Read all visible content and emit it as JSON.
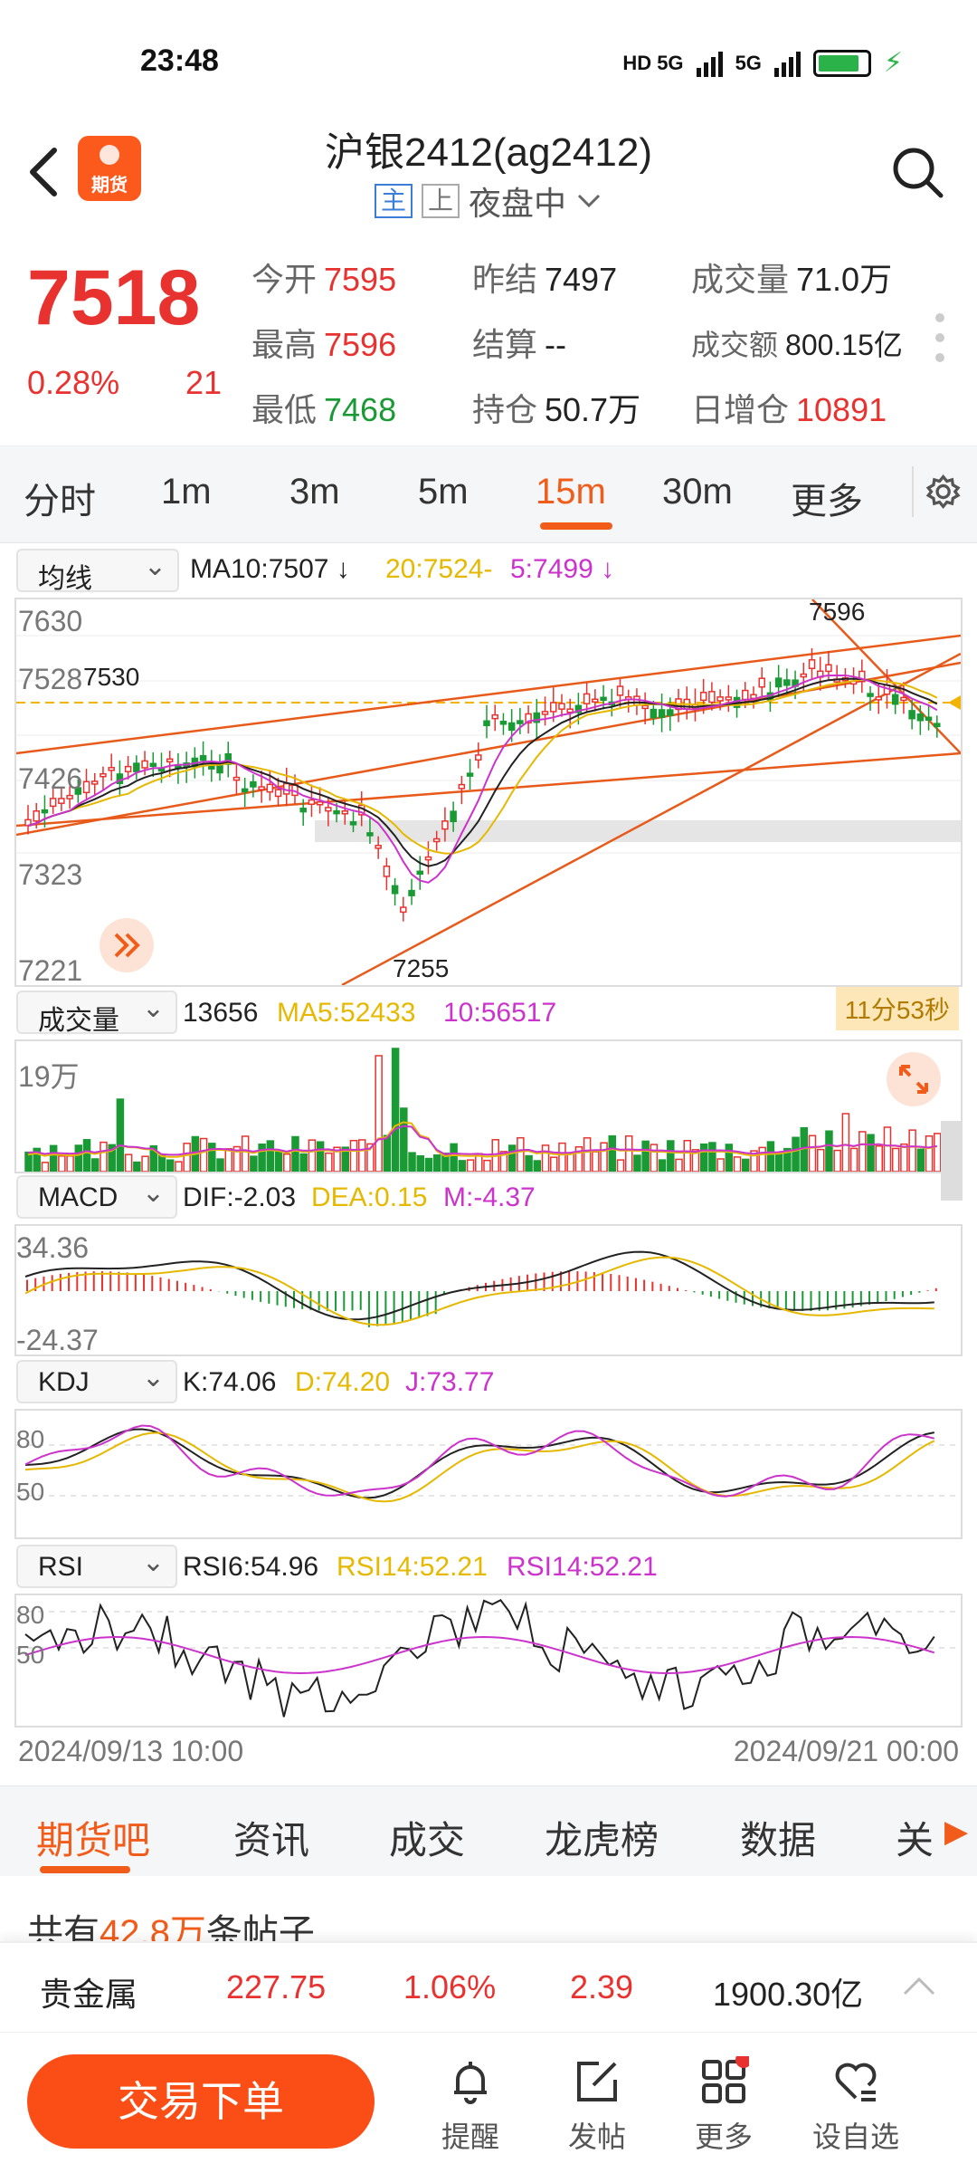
{
  "status_bar": {
    "time": "23:48",
    "network": "HD 5G",
    "network2": "5G",
    "battery_color": "#2bb34a"
  },
  "header": {
    "title": "沪银2412(ag2412)",
    "tag_main": "主",
    "tag_up": "上",
    "session": "夜盘中",
    "logo_text": "期货"
  },
  "quote": {
    "price": "7518",
    "change_pct": "0.28%",
    "change": "21",
    "open_label": "今开",
    "open": "7595",
    "prev_close_label": "昨结",
    "prev_close": "7497",
    "volume_label": "成交量",
    "volume": "71.0万",
    "high_label": "最高",
    "high": "7596",
    "settle_label": "结算",
    "settle": "--",
    "turnover_label": "成交额",
    "turnover": "800.15亿",
    "low_label": "最低",
    "low": "7468",
    "open_interest_label": "持仓",
    "open_interest": "50.7万",
    "oi_change_label": "日增仓",
    "oi_change": "10891"
  },
  "tabs": [
    "分时",
    "1m",
    "3m",
    "5m",
    "15m",
    "30m",
    "更多"
  ],
  "active_tab": "15m",
  "ma": {
    "selector": "均线",
    "ma10": "MA10:7507",
    "ma20": "20:7524-",
    "ma5": "5:7499"
  },
  "price_axis": [
    "7630",
    "7528",
    "7426",
    "7323",
    "7221"
  ],
  "annotations": {
    "high": "7596",
    "low": "7255",
    "mark": "7530"
  },
  "volume": {
    "selector": "成交量",
    "value": "13656",
    "ma5": "MA5:52433",
    "ma10": "10:56517",
    "axis_top": "19万",
    "timer": "11分53秒"
  },
  "macd": {
    "selector": "MACD",
    "dif": "DIF:-2.03",
    "dea": "DEA:0.15",
    "m": "M:-4.37",
    "axis_top": "34.36",
    "axis_bottom": "-24.37"
  },
  "kdj": {
    "selector": "KDJ",
    "k": "K:74.06",
    "d": "D:74.20",
    "j": "J:73.77",
    "axis_80": "80",
    "axis_50": "50"
  },
  "rsi": {
    "selector": "RSI",
    "rsi6": "RSI6:54.96",
    "rsi14a": "RSI14:52.21",
    "rsi14b": "RSI14:52.21",
    "axis_80": "80",
    "axis_50": "50"
  },
  "dates": {
    "start": "2024/09/13 10:00",
    "end": "2024/09/21 00:00"
  },
  "bottom_tabs": [
    "期货吧",
    "资讯",
    "成交",
    "龙虎榜",
    "数据",
    "关"
  ],
  "posts": {
    "prefix": "共有",
    "count": "42.8万",
    "suffix": "条帖子"
  },
  "sector": {
    "name": "贵金属",
    "price": "227.75",
    "pct": "1.06%",
    "change": "2.39",
    "turnover": "1900.30亿"
  },
  "nav": {
    "trade": "交易下单",
    "remind": "提醒",
    "post": "发帖",
    "more": "更多",
    "watch": "设自选"
  },
  "colors": {
    "up": "#e8322f",
    "down": "#1a9a35",
    "accent": "#f25c1a"
  }
}
